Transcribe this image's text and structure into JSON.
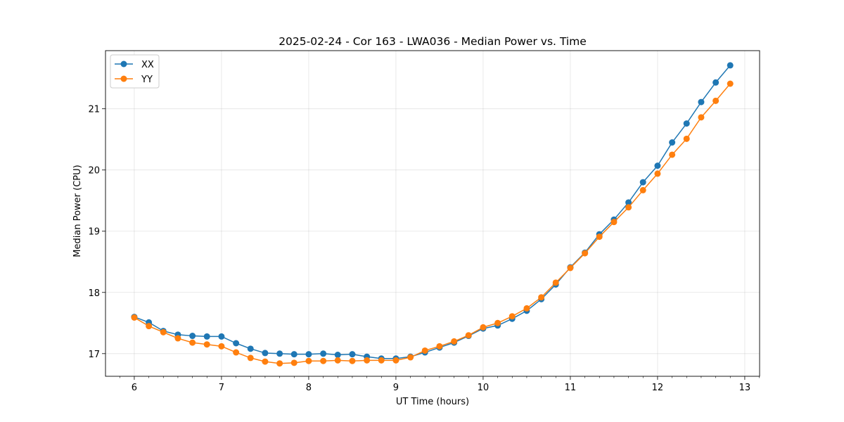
{
  "chart_data": {
    "type": "line",
    "title": "2025-02-24 - Cor 163 - LWA036 - Median Power vs. Time",
    "xlabel": "UT Time (hours)",
    "ylabel": "Median Power (CPU)",
    "xlim": [
      5.67,
      13.17
    ],
    "ylim": [
      16.63,
      21.95
    ],
    "xticks": [
      6,
      7,
      8,
      9,
      10,
      11,
      12,
      13
    ],
    "yticks": [
      17,
      18,
      19,
      20,
      21
    ],
    "grid": true,
    "legend_position": "top-left",
    "x": [
      6.0,
      6.167,
      6.333,
      6.5,
      6.667,
      6.833,
      7.0,
      7.167,
      7.333,
      7.5,
      7.667,
      7.833,
      8.0,
      8.167,
      8.333,
      8.5,
      8.667,
      8.833,
      9.0,
      9.167,
      9.333,
      9.5,
      9.667,
      9.833,
      10.0,
      10.167,
      10.333,
      10.5,
      10.667,
      10.833,
      11.0,
      11.167,
      11.333,
      11.5,
      11.667,
      11.833,
      12.0,
      12.167,
      12.333,
      12.5,
      12.667,
      12.833
    ],
    "series": [
      {
        "name": "XX",
        "color": "#1f77b4",
        "values": [
          17.6,
          17.51,
          17.37,
          17.31,
          17.29,
          17.28,
          17.28,
          17.17,
          17.08,
          17.01,
          17.0,
          16.99,
          16.99,
          17.0,
          16.98,
          16.99,
          16.95,
          16.92,
          16.92,
          16.95,
          17.02,
          17.1,
          17.18,
          17.29,
          17.41,
          17.46,
          17.57,
          17.7,
          17.89,
          18.13,
          18.41,
          18.65,
          18.95,
          19.19,
          19.47,
          19.8,
          20.07,
          20.45,
          20.76,
          21.11,
          21.43,
          21.71
        ]
      },
      {
        "name": "YY",
        "color": "#ff7f0e",
        "values": [
          17.59,
          17.45,
          17.35,
          17.25,
          17.18,
          17.15,
          17.12,
          17.02,
          16.93,
          16.87,
          16.84,
          16.85,
          16.88,
          16.88,
          16.89,
          16.88,
          16.89,
          16.89,
          16.89,
          16.94,
          17.05,
          17.12,
          17.2,
          17.3,
          17.43,
          17.5,
          17.61,
          17.74,
          17.92,
          18.16,
          18.4,
          18.64,
          18.91,
          19.15,
          19.39,
          19.67,
          19.94,
          20.25,
          20.51,
          20.86,
          21.13,
          21.41
        ]
      }
    ]
  }
}
